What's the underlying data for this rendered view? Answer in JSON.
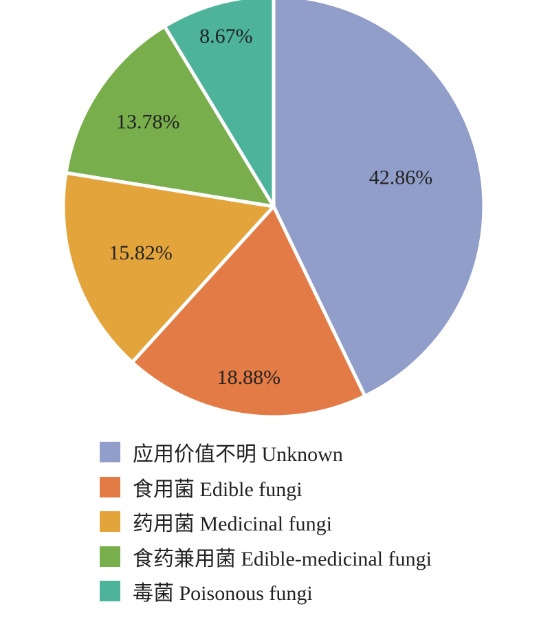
{
  "chart_data": {
    "type": "pie",
    "categories": [
      "应用价值不明 Unknown",
      "食用菌 Edible fungi",
      "药用菌 Medicinal fungi",
      "食药兼用菌 Edible-medicinal fungi",
      "毒菌 Poisonous fungi"
    ],
    "values": [
      42.86,
      18.88,
      15.82,
      13.78,
      8.67
    ],
    "labels": [
      "42.86%",
      "18.88%",
      "15.82%",
      "13.78%",
      "8.67%"
    ],
    "colors": [
      "#919ECA",
      "#E37B46",
      "#E3A53B",
      "#78AE4C",
      "#4DB39B"
    ],
    "start_angle": "12 o'clock",
    "direction": "clockwise",
    "legend_position": "bottom"
  }
}
